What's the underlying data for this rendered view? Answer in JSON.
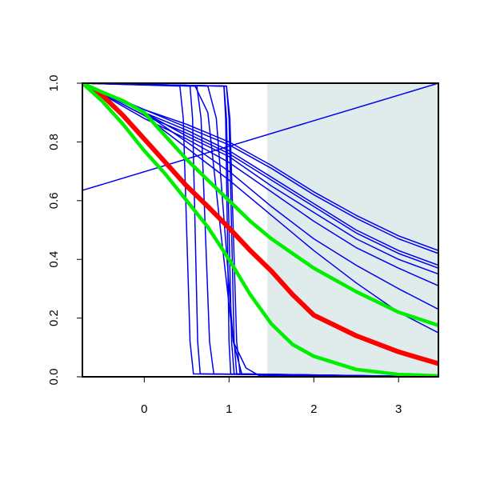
{
  "chart_data": {
    "type": "line",
    "xlim": [
      -0.73,
      3.47
    ],
    "ylim": [
      0,
      1
    ],
    "xticks": [
      0,
      1,
      2,
      3
    ],
    "yticks": [
      {
        "value": 0,
        "label": "0.0"
      },
      0.2,
      0.4,
      0.6,
      0.8,
      {
        "value": 1,
        "label": "1.0"
      }
    ],
    "shaded_region": {
      "xmin": 1.45,
      "xmax": 3.47,
      "color": "#e0ecec"
    },
    "series": [
      {
        "color": "#0000ee",
        "line_width": 1.5,
        "x": [
          -0.73,
          3.47
        ],
        "values": [
          0.635,
          1.0
        ]
      },
      {
        "color": "#0000ee",
        "line_width": 1.5,
        "x": [
          -0.73,
          0,
          0.5,
          1,
          1.5,
          2,
          2.5,
          3,
          3.47
        ],
        "values": [
          1,
          0.91,
          0.86,
          0.8,
          0.72,
          0.63,
          0.55,
          0.48,
          0.43
        ]
      },
      {
        "color": "#0000ee",
        "line_width": 1.5,
        "x": [
          -0.73,
          0,
          0.5,
          1,
          1.5,
          2,
          2.5,
          3,
          3.47
        ],
        "values": [
          1,
          0.91,
          0.85,
          0.79,
          0.71,
          0.62,
          0.54,
          0.47,
          0.42
        ]
      },
      {
        "color": "#0000ee",
        "line_width": 1.5,
        "x": [
          -0.73,
          0,
          0.5,
          1,
          1.5,
          2,
          2.5,
          3,
          3.47
        ],
        "values": [
          1,
          0.9,
          0.84,
          0.77,
          0.68,
          0.59,
          0.5,
          0.43,
          0.38
        ]
      },
      {
        "color": "#0000ee",
        "line_width": 1.5,
        "x": [
          -0.73,
          0,
          0.5,
          1,
          1.5,
          2,
          2.5,
          3,
          3.47
        ],
        "values": [
          1,
          0.89,
          0.83,
          0.76,
          0.67,
          0.58,
          0.49,
          0.42,
          0.37
        ]
      },
      {
        "color": "#0000ee",
        "line_width": 1.5,
        "x": [
          -0.73,
          0,
          0.5,
          1,
          1.5,
          2,
          2.5,
          3,
          3.47
        ],
        "values": [
          1,
          0.9,
          0.82,
          0.75,
          0.65,
          0.56,
          0.47,
          0.4,
          0.35
        ]
      },
      {
        "color": "#0000ee",
        "line_width": 1.5,
        "x": [
          -0.73,
          0,
          0.5,
          1,
          1.5,
          2,
          2.5,
          3,
          3.47
        ],
        "values": [
          1,
          0.88,
          0.81,
          0.73,
          0.63,
          0.53,
          0.44,
          0.37,
          0.31
        ]
      },
      {
        "color": "#0000ee",
        "line_width": 1.5,
        "x": [
          -0.73,
          0,
          0.5,
          1,
          1.5,
          2,
          2.5,
          3,
          3.47
        ],
        "values": [
          1,
          0.9,
          0.8,
          0.7,
          0.58,
          0.47,
          0.38,
          0.3,
          0.23
        ]
      },
      {
        "color": "#0000ee",
        "line_width": 1.5,
        "x": [
          -0.73,
          0,
          0.5,
          1,
          1.5,
          2,
          2.5,
          3,
          3.47
        ],
        "values": [
          1,
          0.89,
          0.78,
          0.67,
          0.55,
          0.43,
          0.32,
          0.22,
          0.15
        ]
      },
      {
        "color": "#0000ee",
        "line_width": 1.5,
        "x": [
          -0.73,
          0.42,
          0.46,
          0.5,
          0.54,
          0.58,
          3.47
        ],
        "values": [
          1,
          0.99,
          0.88,
          0.5,
          0.12,
          0.01,
          0
        ]
      },
      {
        "color": "#0000ee",
        "line_width": 1.5,
        "x": [
          -0.73,
          0.54,
          0.57,
          0.6,
          0.63,
          0.66,
          3.47
        ],
        "values": [
          1,
          0.99,
          0.88,
          0.5,
          0.12,
          0.01,
          0
        ]
      },
      {
        "color": "#0000ee",
        "line_width": 1.5,
        "x": [
          -0.73,
          0.62,
          0.67,
          0.72,
          0.77,
          0.82,
          3.47
        ],
        "values": [
          1,
          0.99,
          0.88,
          0.5,
          0.12,
          0.01,
          0
        ]
      },
      {
        "color": "#0000ee",
        "line_width": 1.5,
        "x": [
          -0.73,
          0.6,
          0.75,
          0.9,
          1.05,
          1.2,
          1.35,
          3.47
        ],
        "values": [
          1,
          0.99,
          0.9,
          0.5,
          0.12,
          0.03,
          0.005,
          0
        ]
      },
      {
        "color": "#0000ee",
        "line_width": 1.5,
        "x": [
          -0.73,
          0.75,
          0.85,
          0.95,
          1.05,
          1.15,
          3.47
        ],
        "values": [
          1,
          0.99,
          0.88,
          0.5,
          0.12,
          0.01,
          0
        ]
      },
      {
        "color": "#0000ee",
        "line_width": 1.5,
        "x": [
          -0.73,
          0.94,
          0.96,
          0.98,
          1.0,
          1.02,
          3.47
        ],
        "values": [
          1,
          0.99,
          0.88,
          0.5,
          0.12,
          0.01,
          0
        ]
      },
      {
        "color": "#0000ee",
        "line_width": 1.5,
        "x": [
          -0.73,
          0.94,
          0.97,
          1.0,
          1.03,
          1.06,
          3.47
        ],
        "values": [
          1,
          0.99,
          0.88,
          0.5,
          0.12,
          0.01,
          0
        ]
      },
      {
        "color": "#0000ee",
        "line_width": 1.5,
        "x": [
          -0.73,
          0.97,
          1.0,
          1.03,
          1.06,
          1.09,
          3.47
        ],
        "values": [
          1,
          0.99,
          0.88,
          0.5,
          0.12,
          0.01,
          0
        ]
      },
      {
        "color": "#0000ee",
        "line_width": 1.5,
        "x": [
          -0.73,
          0.97,
          1.01,
          1.05,
          1.09,
          1.13,
          3.47
        ],
        "values": [
          1,
          0.99,
          0.88,
          0.5,
          0.12,
          0.01,
          0
        ]
      },
      {
        "color": "#ff0000",
        "line_width": 6,
        "x": [
          -0.73,
          -0.5,
          -0.25,
          0,
          0.25,
          0.5,
          0.75,
          1,
          1.25,
          1.5,
          1.75,
          2,
          2.5,
          3,
          3.47
        ],
        "values": [
          1,
          0.96,
          0.89,
          0.81,
          0.73,
          0.65,
          0.58,
          0.507,
          0.43,
          0.36,
          0.28,
          0.21,
          0.14,
          0.085,
          0.045
        ]
      },
      {
        "color": "#00ee00",
        "line_width": 4.5,
        "x": [
          -0.73,
          -0.5,
          -0.25,
          0,
          0.25,
          0.5,
          0.75,
          1,
          1.25,
          1.5,
          1.75,
          2,
          2.5,
          3,
          3.47
        ],
        "values": [
          1,
          0.97,
          0.94,
          0.9,
          0.82,
          0.74,
          0.67,
          0.6,
          0.53,
          0.47,
          0.42,
          0.37,
          0.29,
          0.22,
          0.175
        ]
      },
      {
        "color": "#00ee00",
        "line_width": 4.5,
        "x": [
          -0.73,
          -0.5,
          -0.25,
          0,
          0.25,
          0.5,
          0.75,
          1,
          1.25,
          1.5,
          1.75,
          2,
          2.5,
          3,
          3.47
        ],
        "values": [
          1,
          0.94,
          0.86,
          0.77,
          0.69,
          0.6,
          0.51,
          0.4,
          0.28,
          0.18,
          0.11,
          0.07,
          0.025,
          0.008,
          0.003
        ]
      }
    ]
  }
}
